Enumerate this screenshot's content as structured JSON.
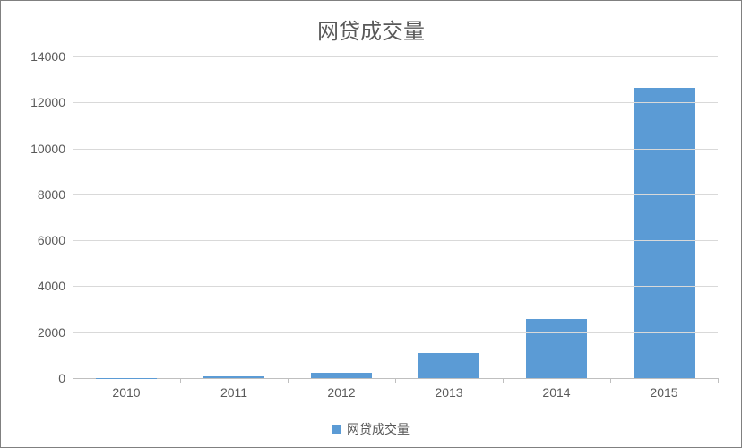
{
  "chart": {
    "type": "bar",
    "title": "网贷成交量",
    "title_fontsize": 24,
    "title_color": "#595959",
    "categories": [
      "2010",
      "2011",
      "2012",
      "2013",
      "2014",
      "2015"
    ],
    "values": [
      10,
      80,
      230,
      1080,
      2580,
      12650
    ],
    "bar_color": "#5b9bd5",
    "bar_width": 0.56,
    "ylim": [
      0,
      14000
    ],
    "ytick_step": 2000,
    "yticks": [
      0,
      2000,
      4000,
      6000,
      8000,
      10000,
      12000,
      14000
    ],
    "axis_color": "#bfbfbf",
    "grid_color": "#d9d9d9",
    "label_color": "#595959",
    "label_fontsize": 14,
    "background_color": "#ffffff",
    "border_color": "#808080",
    "legend": {
      "label": "网贷成交量",
      "swatch_color": "#5b9bd5",
      "position": "bottom-center"
    }
  }
}
